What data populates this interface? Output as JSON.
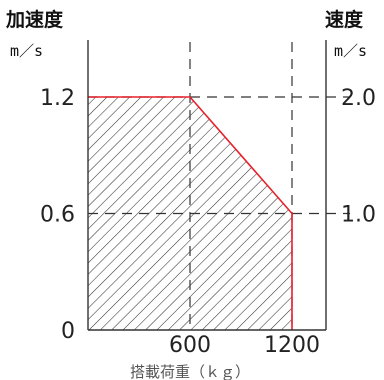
{
  "chart_data": {
    "type": "area",
    "left_axis": {
      "title": "加速度",
      "unit": "m／s",
      "ticks": [
        {
          "value": 0,
          "label": "0"
        },
        {
          "value": 0.6,
          "label": "0.6"
        },
        {
          "value": 1.2,
          "label": "1.2"
        }
      ],
      "range": [
        0,
        1.2
      ]
    },
    "right_axis": {
      "title": "速度",
      "unit": "m／s",
      "ticks": [
        {
          "value": 1.0,
          "label": "1.0"
        },
        {
          "value": 2.0,
          "label": "2.0"
        }
      ],
      "range": [
        0,
        2.0
      ]
    },
    "x_axis": {
      "label": "搭載荷重（ｋｇ）",
      "ticks": [
        {
          "value": 600,
          "label": "600"
        },
        {
          "value": 1200,
          "label": "1200"
        }
      ],
      "range": [
        0,
        1400
      ]
    },
    "region": {
      "points": [
        {
          "x": 0,
          "y": 1.2
        },
        {
          "x": 600,
          "y": 1.2
        },
        {
          "x": 1200,
          "y": 0.6
        },
        {
          "x": 1200,
          "y": 0
        }
      ],
      "boundary_color": "#e8202a",
      "fill_pattern": "diagonal-hatch"
    },
    "grid": {
      "style": "dashed",
      "x": [
        600,
        1200
      ],
      "y": [
        0.6,
        1.2
      ]
    }
  }
}
